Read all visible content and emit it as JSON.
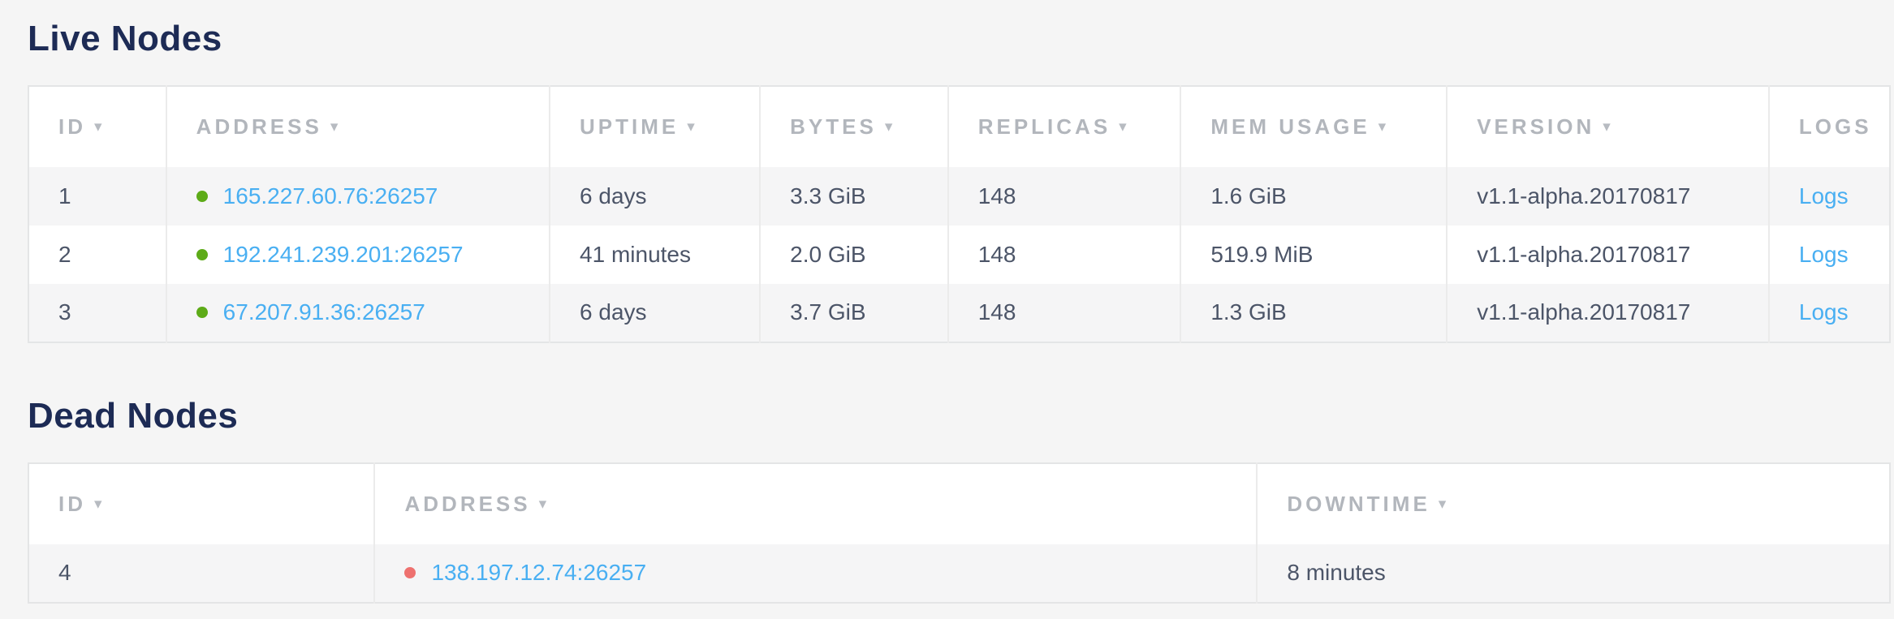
{
  "ui": {
    "sort_arrow": "▾"
  },
  "colors": {
    "page_background": "#f5f5f5",
    "title_navy": "#1d2b55",
    "header_gray": "#b2b6bc",
    "body_text": "#4c5568",
    "link_blue": "#49aff2",
    "live_dot_green": "#5dab18",
    "dead_dot_red": "#ee716f"
  },
  "live_nodes": {
    "title": "Live Nodes",
    "columns": [
      {
        "label": "ID",
        "sortable": true
      },
      {
        "label": "ADDRESS",
        "sortable": true
      },
      {
        "label": "UPTIME",
        "sortable": true
      },
      {
        "label": "BYTES",
        "sortable": true
      },
      {
        "label": "REPLICAS",
        "sortable": true
      },
      {
        "label": "MEM USAGE",
        "sortable": true
      },
      {
        "label": "VERSION",
        "sortable": true
      },
      {
        "label": "LOGS",
        "sortable": false
      }
    ],
    "rows": [
      {
        "id": "1",
        "status": "live",
        "address": "165.227.60.76:26257",
        "uptime": "6 days",
        "bytes": "3.3 GiB",
        "replicas": "148",
        "mem_usage": "1.6 GiB",
        "version": "v1.1-alpha.20170817",
        "logs_label": "Logs"
      },
      {
        "id": "2",
        "status": "live",
        "address": "192.241.239.201:26257",
        "uptime": "41 minutes",
        "bytes": "2.0 GiB",
        "replicas": "148",
        "mem_usage": "519.9 MiB",
        "version": "v1.1-alpha.20170817",
        "logs_label": "Logs"
      },
      {
        "id": "3",
        "status": "live",
        "address": "67.207.91.36:26257",
        "uptime": "6 days",
        "bytes": "3.7 GiB",
        "replicas": "148",
        "mem_usage": "1.3 GiB",
        "version": "v1.1-alpha.20170817",
        "logs_label": "Logs"
      }
    ]
  },
  "dead_nodes": {
    "title": "Dead Nodes",
    "columns": [
      {
        "label": "ID",
        "sortable": true
      },
      {
        "label": "ADDRESS",
        "sortable": true
      },
      {
        "label": "DOWNTIME",
        "sortable": true
      }
    ],
    "rows": [
      {
        "id": "4",
        "status": "dead",
        "address": "138.197.12.74:26257",
        "downtime": "8 minutes"
      }
    ]
  }
}
